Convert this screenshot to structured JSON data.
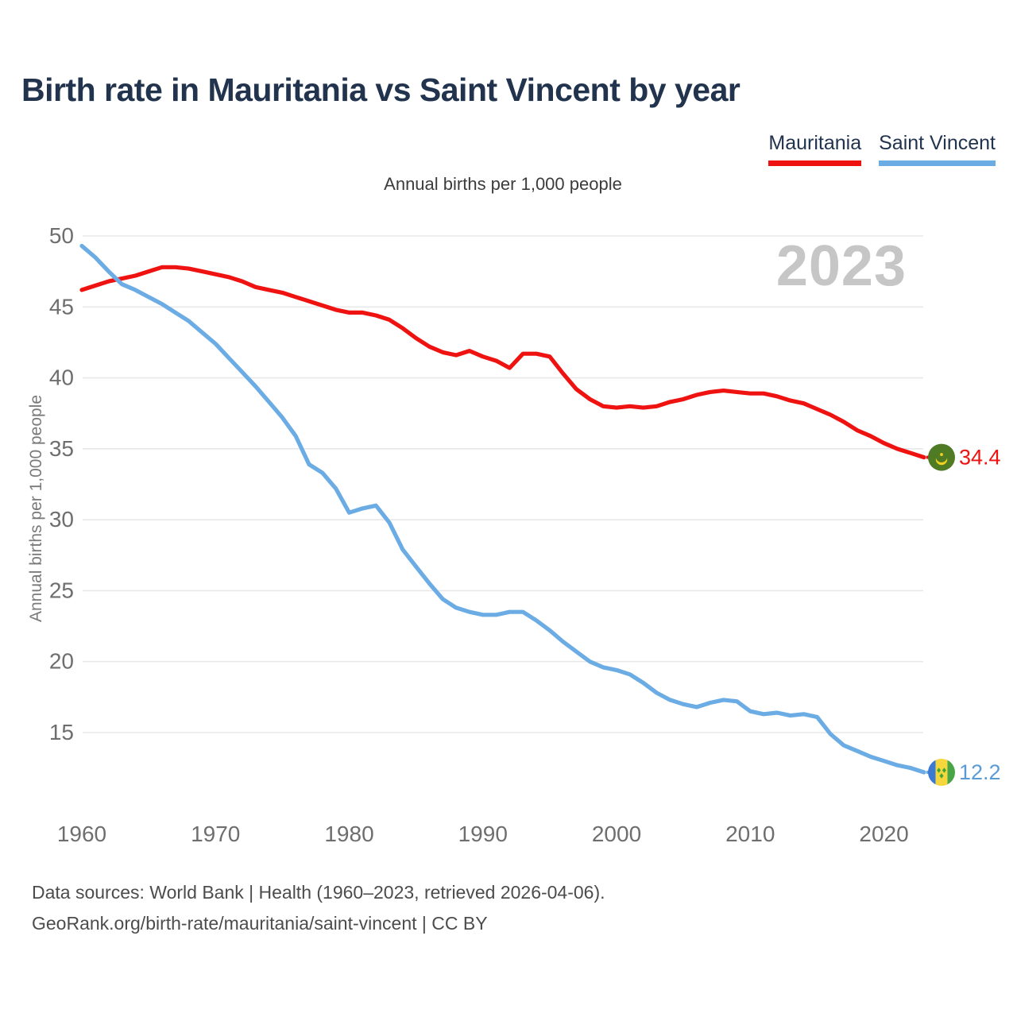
{
  "title": "Birth rate in Mauritania vs Saint Vincent by year",
  "subtitle": "Annual births per 1,000 people",
  "watermark": "2023",
  "y_axis_label": "Annual births per 1,000 people",
  "legend": {
    "items": [
      {
        "label": "Mauritania",
        "color": "#ee1311"
      },
      {
        "label": "Saint Vincent",
        "color": "#6cace4"
      }
    ]
  },
  "end_labels": {
    "mauritania": {
      "value": "34.4",
      "flag": "mauritania-flag",
      "color": "#ee1311"
    },
    "saint_vincent": {
      "value": "12.2",
      "flag": "saint-vincent-flag",
      "color": "#5b9bd5"
    }
  },
  "footer": {
    "line1": "Data sources: World Bank | Health (1960–2023, retrieved 2026-04-06).",
    "line2": "GeoRank.org/birth-rate/mauritania/saint-vincent | CC BY"
  },
  "chart_data": {
    "type": "line",
    "title": "Birth rate in Mauritania vs Saint Vincent by year",
    "ylabel": "Annual births per 1,000 people",
    "grid": true,
    "legend_position": "top-right",
    "xlim": [
      1960,
      2023
    ],
    "ylim": [
      11.5,
      51
    ],
    "x_ticks": [
      1960,
      1970,
      1980,
      1990,
      2000,
      2010,
      2020
    ],
    "y_ticks": [
      15,
      20,
      25,
      30,
      35,
      40,
      45,
      50
    ],
    "x": [
      1960,
      1961,
      1962,
      1963,
      1964,
      1965,
      1966,
      1967,
      1968,
      1969,
      1970,
      1971,
      1972,
      1973,
      1974,
      1975,
      1976,
      1977,
      1978,
      1979,
      1980,
      1981,
      1982,
      1983,
      1984,
      1985,
      1986,
      1987,
      1988,
      1989,
      1990,
      1991,
      1992,
      1993,
      1994,
      1995,
      1996,
      1997,
      1998,
      1999,
      2000,
      2001,
      2002,
      2003,
      2004,
      2005,
      2006,
      2007,
      2008,
      2009,
      2010,
      2011,
      2012,
      2013,
      2014,
      2015,
      2016,
      2017,
      2018,
      2019,
      2020,
      2021,
      2022,
      2023
    ],
    "series": [
      {
        "name": "Mauritania",
        "color": "#ee1311",
        "flag": "mauritania-flag",
        "end_value": 34.4,
        "values": [
          46.2,
          46.5,
          46.8,
          47.0,
          47.2,
          47.5,
          47.8,
          47.8,
          47.7,
          47.5,
          47.3,
          47.1,
          46.8,
          46.4,
          46.2,
          46.0,
          45.7,
          45.4,
          45.1,
          44.8,
          44.6,
          44.6,
          44.4,
          44.1,
          43.5,
          42.8,
          42.2,
          41.8,
          41.6,
          41.9,
          41.5,
          41.2,
          40.7,
          41.7,
          41.7,
          41.5,
          40.3,
          39.2,
          38.5,
          38.0,
          37.9,
          38.0,
          37.9,
          38.0,
          38.3,
          38.5,
          38.8,
          39.0,
          39.1,
          39.0,
          38.9,
          38.9,
          38.7,
          38.4,
          38.2,
          37.8,
          37.4,
          36.9,
          36.3,
          35.9,
          35.4,
          35.0,
          34.7,
          34.4
        ]
      },
      {
        "name": "Saint Vincent",
        "color": "#6cace4",
        "flag": "saint-vincent-flag",
        "end_value": 12.2,
        "values": [
          49.3,
          48.5,
          47.5,
          46.6,
          46.2,
          45.7,
          45.2,
          44.6,
          44.0,
          43.2,
          42.4,
          41.4,
          40.4,
          39.4,
          38.3,
          37.2,
          35.9,
          33.9,
          33.3,
          32.2,
          30.5,
          30.8,
          31.0,
          29.8,
          27.9,
          26.7,
          25.5,
          24.4,
          23.8,
          23.5,
          23.3,
          23.3,
          23.5,
          23.5,
          22.9,
          22.2,
          21.4,
          20.7,
          20.0,
          19.6,
          19.4,
          19.1,
          18.5,
          17.8,
          17.3,
          17.0,
          16.8,
          17.1,
          17.3,
          17.2,
          16.5,
          16.3,
          16.4,
          16.2,
          16.3,
          16.1,
          14.9,
          14.1,
          13.7,
          13.3,
          13.0,
          12.7,
          12.5,
          12.2
        ]
      }
    ]
  }
}
